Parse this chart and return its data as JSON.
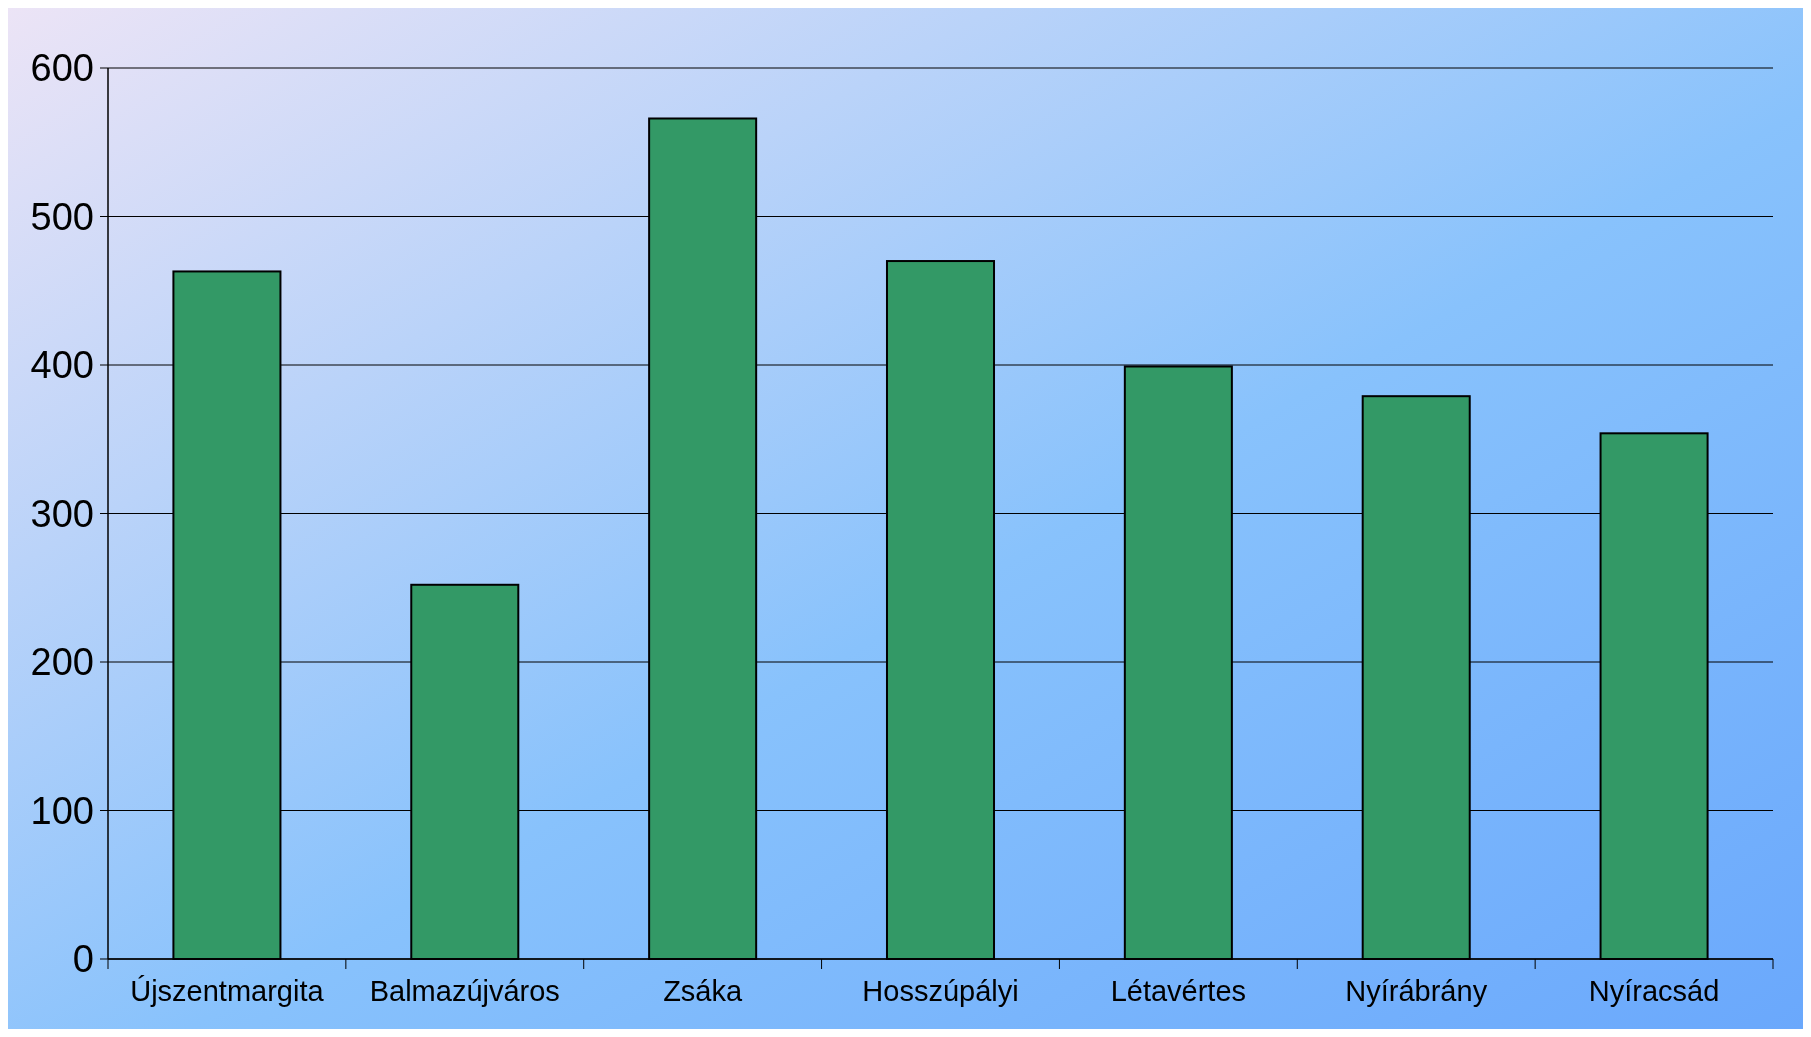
{
  "chart_data": {
    "type": "bar",
    "categories": [
      "Újszentmargita",
      "Balmazújváros",
      "Zsáka",
      "Hosszúpályi",
      "Létavértes",
      "Nyírábrány",
      "Nyíracsád"
    ],
    "values": [
      463,
      252,
      566,
      470,
      399,
      379,
      354
    ],
    "color": "#339966",
    "ylim": [
      0,
      600
    ],
    "yticks": [
      0,
      100,
      200,
      300,
      400,
      500,
      600
    ],
    "grid": "y"
  }
}
